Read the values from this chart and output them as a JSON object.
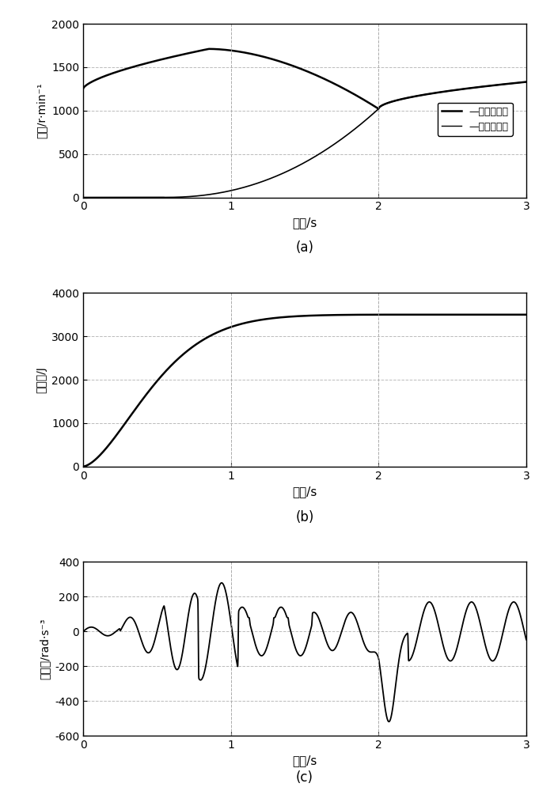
{
  "title_a": "(a)",
  "title_b": "(b)",
  "title_c": "(c)",
  "xlabel": "时间/s",
  "ylabel_a": "转速/r·min⁻¹",
  "ylabel_b": "滑摩功/J",
  "ylabel_c": "冲击度/rad·s⁻³",
  "legend_engine": "—发动机转速",
  "legend_clutch": "—离合器转速",
  "xlim": [
    0,
    3
  ],
  "ylim_a": [
    0,
    2000
  ],
  "ylim_b": [
    0,
    4000
  ],
  "ylim_c": [
    -600,
    400
  ],
  "yticks_a": [
    0,
    500,
    1000,
    1500,
    2000
  ],
  "yticks_b": [
    0,
    1000,
    2000,
    3000,
    4000
  ],
  "yticks_c": [
    -600,
    -400,
    -200,
    0,
    200,
    400
  ],
  "xticks": [
    0,
    1,
    2,
    3
  ],
  "line_color": "#000000",
  "grid_color": "#aaaaaa",
  "background": "#ffffff"
}
